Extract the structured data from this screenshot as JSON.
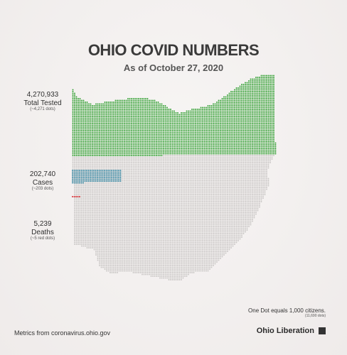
{
  "title": "OHIO COVID NUMBERS",
  "subtitle": "As of October 27, 2020",
  "stats": {
    "tested": {
      "value": "4,270,933",
      "label": "Total Tested",
      "dots": "(~4,271 dots)"
    },
    "cases": {
      "value": "202,740",
      "label": "Cases",
      "dots": "(~203 dots)"
    },
    "deaths": {
      "value": "5,239",
      "label": "Deaths",
      "dots": "(~5 red dots)"
    }
  },
  "note": {
    "line1": "One Dot equals 1,000 citizens.",
    "line2": "(11,690 dots)"
  },
  "source": "Metrics from coronavirus.ohio.gov",
  "brand": "Ohio Liberation",
  "colors": {
    "tested": "#2f9e2f",
    "cases": "#3a8ca8",
    "deaths": "#d8232a",
    "population": "#c9c6c5"
  },
  "chart_data": {
    "type": "dot-map",
    "dot_value": 1000,
    "total_dots": 11690,
    "categories": [
      "Total Tested",
      "Cases",
      "Deaths"
    ],
    "values": [
      4270933,
      202740,
      5239
    ],
    "dots": [
      4271,
      203,
      5
    ]
  }
}
